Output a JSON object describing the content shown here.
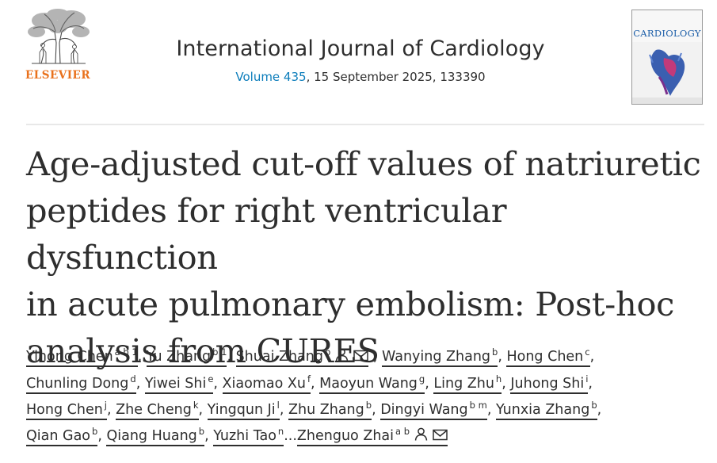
{
  "header": {
    "publisher": "ELSEVIER",
    "journal_title": "International Journal of Cardiology",
    "volume_link": "Volume 435",
    "citation_rest": ", 15 September 2025, 133390",
    "cover_title": "CARDIOLOGY"
  },
  "article": {
    "title_lines": [
      "Age-adjusted cut-off values of natriuretic",
      "peptides for right ventricular dysfunction",
      "in acute pulmonary embolism: Post-hoc",
      "analysis from CURES"
    ]
  },
  "authors": {
    "lines": [
      [
        {
          "name": "Yinong Chen",
          "sup": "a b 1",
          "sep": ", "
        },
        {
          "name": "Yu Zhang",
          "sup": "b 1",
          "sep": ", "
        },
        {
          "name": "Shuai Zhang",
          "sup": "b",
          "icons": true,
          "sep": " , "
        },
        {
          "name": "Wanying Zhang",
          "sup": "b",
          "sep": ", "
        },
        {
          "name": "Hong Chen",
          "sup": "c",
          "sep": ","
        }
      ],
      [
        {
          "name": "Chunling Dong",
          "sup": "d",
          "sep": ", "
        },
        {
          "name": "Yiwei Shi",
          "sup": "e",
          "sep": ", "
        },
        {
          "name": "Xiaomao Xu",
          "sup": "f",
          "sep": ", "
        },
        {
          "name": "Maoyun Wang",
          "sup": "g",
          "sep": ", "
        },
        {
          "name": "Ling Zhu",
          "sup": "h",
          "sep": ", "
        },
        {
          "name": "Juhong Shi",
          "sup": "i",
          "sep": ","
        }
      ],
      [
        {
          "name": "Hong Chen",
          "sup": "j",
          "sep": ", "
        },
        {
          "name": "Zhe Cheng",
          "sup": "k",
          "sep": ", "
        },
        {
          "name": "Yingqun Ji",
          "sup": "l",
          "sep": ", "
        },
        {
          "name": "Zhu Zhang",
          "sup": "b",
          "sep": ", "
        },
        {
          "name": "Dingyi Wang",
          "sup": "b m",
          "sep": ", "
        },
        {
          "name": "Yunxia Zhang",
          "sup": "b",
          "sep": ","
        }
      ],
      [
        {
          "name": "Qian Gao",
          "sup": "b",
          "sep": ", "
        },
        {
          "name": "Qiang Huang",
          "sup": "b",
          "sep": ", "
        },
        {
          "name": "Yuzhi Tao",
          "sup": "n",
          "sep": "..."
        },
        {
          "name": "Zhenguo Zhai",
          "sup": "a b",
          "icons": true,
          "sep": ""
        }
      ]
    ]
  },
  "icons": {
    "person": "person-icon",
    "email": "envelope-icon"
  },
  "colors": {
    "publisher": "#e9711c",
    "link": "#0c7dbb",
    "text": "#2e2e2e"
  }
}
